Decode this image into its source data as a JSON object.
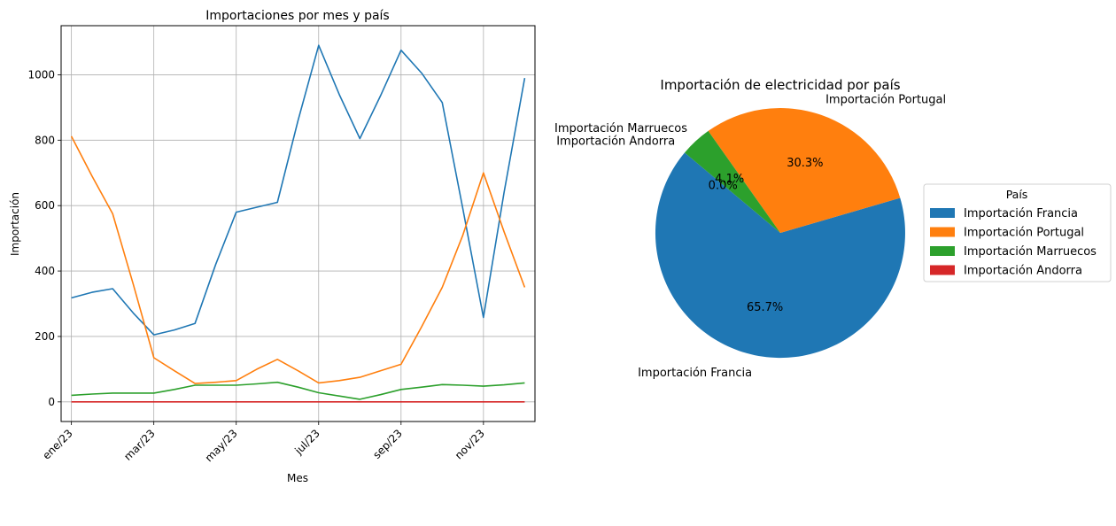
{
  "chart_data": [
    {
      "type": "line",
      "title": "Importaciones por mes y país",
      "xlabel": "Mes",
      "ylabel": "Importación",
      "x_ticks": [
        "ene/23",
        "mar/23",
        "may/23",
        "jul/23",
        "sep/23",
        "nov/23"
      ],
      "x": [
        0,
        0.5,
        1,
        1.5,
        2,
        2.5,
        3,
        3.5,
        4,
        4.5,
        5,
        5.5,
        6,
        6.5,
        7,
        7.5,
        8,
        8.5,
        9,
        9.5,
        10,
        10.5,
        11
      ],
      "xlim": [
        -0.25,
        11.25
      ],
      "y_ticks": [
        0,
        200,
        400,
        600,
        800,
        1000
      ],
      "ylim": [
        -60,
        1150
      ],
      "grid": true,
      "series": [
        {
          "name": "Importación Francia",
          "color": "#1f77b4",
          "values": [
            318,
            335,
            346,
            272,
            205,
            220,
            240,
            420,
            580,
            595,
            610,
            860,
            1090,
            940,
            805,
            935,
            1075,
            1005,
            915,
            590,
            258,
            640,
            990
          ]
        },
        {
          "name": "Importación Portugal",
          "color": "#ff7f0e",
          "values": [
            812,
            690,
            575,
            360,
            135,
            95,
            56,
            60,
            65,
            100,
            130,
            95,
            58,
            65,
            75,
            95,
            115,
            230,
            350,
            510,
            700,
            520,
            350
          ]
        },
        {
          "name": "Importación Marruecos",
          "color": "#2ca02c",
          "values": [
            20,
            24,
            27,
            27,
            27,
            38,
            51,
            51,
            51,
            55,
            60,
            45,
            28,
            18,
            8,
            22,
            38,
            45,
            53,
            51,
            48,
            52,
            58
          ]
        },
        {
          "name": "Importación Andorra",
          "color": "#d62728",
          "values": [
            0,
            0,
            0,
            0,
            0,
            0,
            0,
            0,
            0,
            0,
            0,
            0,
            0,
            0,
            0,
            0,
            0,
            0,
            0,
            0,
            0,
            0,
            0
          ]
        }
      ]
    },
    {
      "type": "pie",
      "title": "Importación de electricidad por país",
      "legend_title": "País",
      "legend_position": "right",
      "slices": [
        {
          "label": "Importación Francia",
          "pct_label": "65.7%",
          "value": 65.7,
          "color": "#1f77b4"
        },
        {
          "label": "Importación Portugal",
          "pct_label": "30.3%",
          "value": 30.3,
          "color": "#ff7f0e"
        },
        {
          "label": "Importación Marruecos",
          "pct_label": "4.1%",
          "value": 4.1,
          "color": "#2ca02c"
        },
        {
          "label": "Importación Andorra",
          "pct_label": "0.0%",
          "value": 0.0,
          "color": "#d62728"
        }
      ]
    }
  ]
}
